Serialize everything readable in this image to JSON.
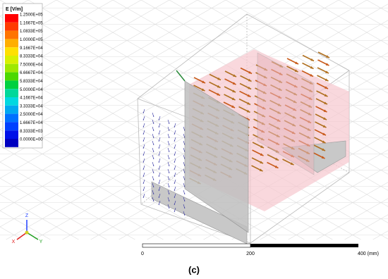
{
  "legend": {
    "title": "E [V/m]",
    "labels": [
      "1.2500E+05",
      "1.1667E+05",
      "1.0833E+05",
      "1.0000E+05",
      "9.1667E+04",
      "8.3333E+04",
      "7.5000E+04",
      "6.6667E+04",
      "5.8333E+04",
      "5.0000E+04",
      "4.1667E+04",
      "3.3333E+04",
      "2.5000E+04",
      "1.6667E+04",
      "8.3333E+03",
      "0.0000E+00"
    ],
    "colors": [
      "#ff0000",
      "#ff3a00",
      "#ff7400",
      "#ffae00",
      "#ffe000",
      "#d8f000",
      "#9ee800",
      "#4cd800",
      "#00d040",
      "#00d89a",
      "#00d8e0",
      "#00a8f0",
      "#0070ff",
      "#0040ff",
      "#0010e8",
      "#0000c0"
    ]
  },
  "triad": {
    "z": "Z",
    "x": "X",
    "y": "Y"
  },
  "scale_bar": {
    "labels": [
      "0",
      "200",
      "400 (mm)"
    ]
  },
  "caption": "(c)"
}
